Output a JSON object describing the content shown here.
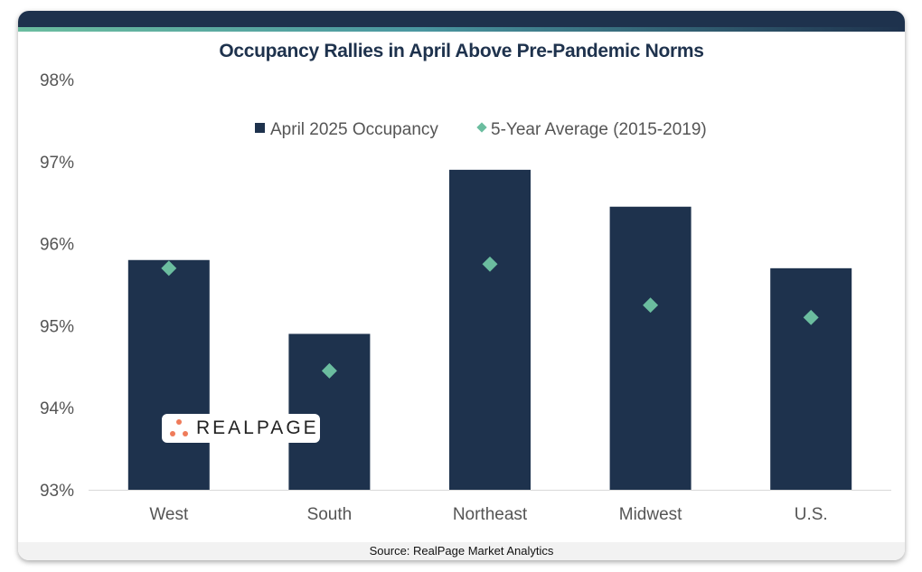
{
  "chart_data": {
    "type": "bar",
    "title": "Occupancy Rallies in April Above Pre-Pandemic Norms",
    "categories": [
      "West",
      "South",
      "Northeast",
      "Midwest",
      "U.S."
    ],
    "series": [
      {
        "name": "April 2025 Occupancy",
        "kind": "bar",
        "color": "#1e324d",
        "values": [
          95.8,
          94.9,
          96.9,
          96.45,
          95.7
        ]
      },
      {
        "name": "5-Year Average (2015-2019)",
        "kind": "marker-diamond",
        "color": "#6bbd9f",
        "values": [
          95.7,
          94.45,
          95.75,
          95.25,
          95.1
        ]
      }
    ],
    "ylim": [
      93,
      98
    ],
    "yticks": [
      "93%",
      "94%",
      "95%",
      "96%",
      "97%",
      "98%"
    ],
    "ytick_values": [
      93,
      94,
      95,
      96,
      97,
      98
    ],
    "grid": false,
    "legend_position": "top-center",
    "source": "Source: RealPage Market Analytics"
  },
  "logo": {
    "text": "REALPAGE",
    "accent": "#ef7b5a"
  }
}
